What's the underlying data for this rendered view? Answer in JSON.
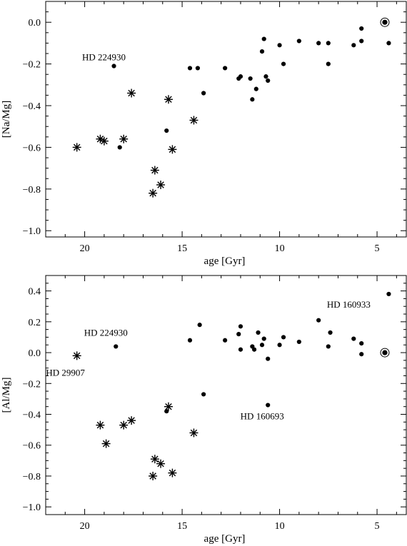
{
  "chart_data": [
    {
      "type": "scatter",
      "xlabel": "age [Gyr]",
      "ylabel": "[Na/Mg]",
      "xlim": [
        22,
        3.5
      ],
      "ylim": [
        -1.03,
        0.1
      ],
      "xticks": [
        20,
        15,
        10,
        5
      ],
      "yticks": [
        0.0,
        -0.2,
        -0.4,
        -0.6,
        -0.8,
        -1.0
      ],
      "ytick_labels": [
        "0.0",
        "−0.2",
        "−0.4",
        "−0.6",
        "−0.8",
        "−1.0"
      ],
      "series": [
        {
          "marker": "dot",
          "x": [
            18.5,
            18.2,
            15.8,
            14.6,
            14.2,
            13.9,
            12.8,
            12.1,
            12.0,
            11.5,
            11.4,
            11.2,
            10.9,
            10.8,
            10.7,
            10.6,
            10.0,
            9.8,
            9.0,
            8.0,
            7.5,
            7.5,
            6.2,
            5.8,
            5.8,
            4.4
          ],
          "y": [
            -0.21,
            -0.6,
            -0.52,
            -0.22,
            -0.22,
            -0.34,
            -0.22,
            -0.27,
            -0.26,
            -0.27,
            -0.37,
            -0.32,
            -0.14,
            -0.08,
            -0.26,
            -0.28,
            -0.11,
            -0.2,
            -0.09,
            -0.1,
            -0.1,
            -0.2,
            -0.11,
            -0.09,
            -0.03,
            -0.1
          ]
        },
        {
          "marker": "star",
          "x": [
            20.4,
            19.2,
            19.0,
            18.0,
            17.6,
            16.5,
            16.4,
            16.1,
            15.7,
            15.5,
            14.4
          ],
          "y": [
            -0.6,
            -0.56,
            -0.57,
            -0.56,
            -0.34,
            -0.82,
            -0.71,
            -0.78,
            -0.37,
            -0.61,
            -0.47
          ]
        },
        {
          "marker": "sun",
          "x": [
            4.6
          ],
          "y": [
            0.0
          ]
        }
      ],
      "annotations": [
        {
          "text": "HD 224930",
          "x": 18.5,
          "y": -0.21
        }
      ]
    },
    {
      "type": "scatter",
      "xlabel": "age [Gyr]",
      "ylabel": "[Al/Mg]",
      "xlim": [
        22,
        3.5
      ],
      "ylim": [
        -1.05,
        0.5
      ],
      "xticks": [
        20,
        15,
        10,
        5
      ],
      "yticks": [
        0.4,
        0.2,
        0.0,
        -0.2,
        -0.4,
        -0.6,
        -0.8,
        -1.0
      ],
      "ytick_labels": [
        "0.4",
        "0.2",
        "0.0",
        "−0.2",
        "−0.4",
        "−0.6",
        "−0.8",
        "−1.0"
      ],
      "series": [
        {
          "marker": "dot",
          "x": [
            18.4,
            15.8,
            14.6,
            14.1,
            13.9,
            12.8,
            12.1,
            12.0,
            12.0,
            11.4,
            11.3,
            11.1,
            10.9,
            10.8,
            10.6,
            10.6,
            10.0,
            9.8,
            9.0,
            8.0,
            7.5,
            7.4,
            6.2,
            5.8,
            5.8,
            4.4
          ],
          "y": [
            0.04,
            -0.38,
            0.08,
            0.18,
            -0.27,
            0.08,
            0.12,
            0.17,
            0.02,
            0.04,
            0.02,
            0.13,
            0.05,
            0.09,
            -0.34,
            -0.04,
            0.05,
            0.1,
            0.07,
            0.21,
            0.04,
            0.13,
            0.09,
            0.06,
            -0.01,
            0.38
          ]
        },
        {
          "marker": "star",
          "x": [
            20.4,
            19.2,
            18.9,
            18.0,
            17.6,
            16.5,
            16.4,
            16.1,
            15.7,
            15.5,
            14.4
          ],
          "y": [
            -0.02,
            -0.47,
            -0.59,
            -0.47,
            -0.44,
            -0.8,
            -0.69,
            -0.72,
            -0.35,
            -0.78,
            -0.52
          ]
        },
        {
          "marker": "sun",
          "x": [
            4.6
          ],
          "y": [
            0.0
          ]
        }
      ],
      "annotations": [
        {
          "text": "HD 160933",
          "x": 4.4,
          "y": 0.38
        },
        {
          "text": "HD 224930",
          "x": 18.4,
          "y": 0.04
        },
        {
          "text": "HD 29907",
          "x": 20.4,
          "y": -0.02
        },
        {
          "text": "HD 160693",
          "x": 10.6,
          "y": -0.34
        }
      ]
    }
  ]
}
